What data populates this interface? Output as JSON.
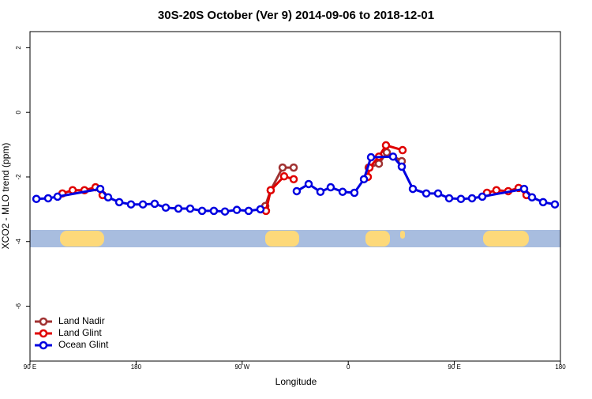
{
  "chart_data": {
    "type": "line",
    "title": "30S-20S October (Ver 9)   2014-09-06 to 2018-12-01",
    "x_label": "Longitude",
    "y_label": "XCO2 - MLO trend (ppm)",
    "xlim": [
      90,
      540
    ],
    "xticks": [
      {
        "value": 90,
        "label": "90 E"
      },
      {
        "value": 180,
        "label": "180"
      },
      {
        "value": 270,
        "label": "90 W"
      },
      {
        "value": 360,
        "label": "0"
      },
      {
        "value": 450,
        "label": "90 E"
      },
      {
        "value": 540,
        "label": "180"
      }
    ],
    "ylim": [
      -7.7,
      2.5
    ],
    "yticks": [
      2,
      0,
      -2,
      -4,
      -6
    ],
    "legend": "bottom-left",
    "series": [
      {
        "name": "Land Nadir",
        "color": "#a03232",
        "x": [
          289.6,
          294.2,
          304.3,
          313.7,
          null,
          377.3,
          386,
          392.7,
          405.4
        ],
        "values": [
          -2.9,
          -2.41,
          -1.71,
          -1.71,
          null,
          -1.71,
          -1.59,
          -1.24,
          -1.51
        ]
      },
      {
        "name": "Land Glint",
        "color": "#e00000",
        "x": [
          117.5,
          126.2,
          136.2,
          145.6,
          151.6,
          null,
          290.2,
          294.2,
          305.6,
          313.7,
          null,
          376.6,
          378,
          386,
          392,
          406.1,
          null,
          477.7,
          485.7,
          495.7,
          504.5,
          511.2
        ],
        "values": [
          -2.51,
          -2.41,
          -2.41,
          -2.32,
          -2.56,
          null,
          -3.05,
          -2.41,
          -1.98,
          -2.07,
          null,
          -2.0,
          -1.71,
          -1.37,
          -1.02,
          -1.17,
          null,
          -2.49,
          -2.41,
          -2.44,
          -2.34,
          -2.56
        ]
      },
      {
        "name": "Ocean Glint",
        "color": "#0000e0",
        "x": [
          95.4,
          105.4,
          113.4,
          149.6,
          156.3,
          165.7,
          175.7,
          185.8,
          195.8,
          205.2,
          215.9,
          225.9,
          236,
          246,
          255.4,
          265.5,
          275.5,
          285.5,
          null,
          316.3,
          326.4,
          336.4,
          345.1,
          355.2,
          365.2,
          373.3,
          379.3,
          398,
          405.4,
          414.8,
          426.2,
          436.2,
          445.6,
          455.6,
          465,
          473.7,
          509.2,
          515.9,
          525.3,
          535.3
        ],
        "values": [
          -2.68,
          -2.66,
          -2.61,
          -2.37,
          -2.63,
          -2.78,
          -2.85,
          -2.85,
          -2.83,
          -2.95,
          -2.98,
          -2.98,
          -3.05,
          -3.05,
          -3.07,
          -3.02,
          -3.05,
          -3.0,
          null,
          -2.44,
          -2.22,
          -2.46,
          -2.32,
          -2.46,
          -2.49,
          -2.07,
          -1.39,
          -1.37,
          -1.68,
          -2.37,
          -2.51,
          -2.51,
          -2.66,
          -2.68,
          -2.66,
          -2.61,
          -2.37,
          -2.63,
          -2.78,
          -2.85
        ]
      }
    ]
  }
}
